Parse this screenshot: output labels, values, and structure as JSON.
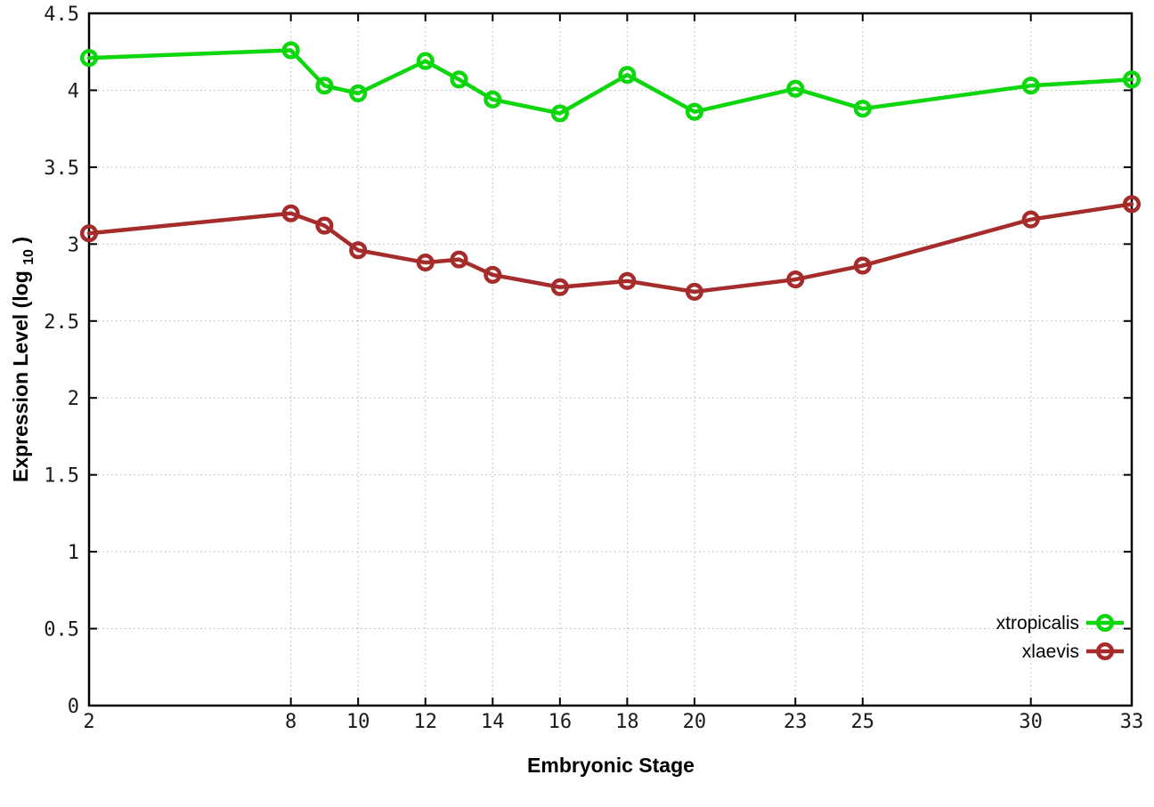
{
  "figure": {
    "xlabel": "Embryonic Stage",
    "ylabel_main": "Expression Level (log",
    "ylabel_sub": "10",
    "ylabel_end": ")"
  },
  "chart_data": {
    "type": "line",
    "title": "",
    "xlabel": "Embryonic Stage",
    "ylabel": "Expression Level (log10)",
    "xlim": [
      2,
      33
    ],
    "ylim": [
      0,
      4.5
    ],
    "xticks": [
      2,
      8,
      10,
      12,
      14,
      16,
      18,
      20,
      23,
      25,
      30,
      33
    ],
    "yticks": [
      0,
      0.5,
      1,
      1.5,
      2,
      2.5,
      3,
      3.5,
      4,
      4.5
    ],
    "grid": true,
    "grid_style": "dotted",
    "legend_position": "inside-bottom-right",
    "marker": "open-circle",
    "x": [
      2,
      8,
      9,
      10,
      12,
      13,
      14,
      16,
      18,
      20,
      23,
      25,
      30,
      33
    ],
    "series": [
      {
        "name": "xtropicalis",
        "color": "#0cd60c",
        "values": [
          4.21,
          4.26,
          4.03,
          3.98,
          4.19,
          4.07,
          3.94,
          3.85,
          4.1,
          3.86,
          4.01,
          3.88,
          4.03,
          4.07
        ]
      },
      {
        "name": "xlaevis",
        "color": "#a62c2c",
        "values": [
          3.07,
          3.2,
          3.12,
          2.96,
          2.88,
          2.9,
          2.8,
          2.72,
          2.76,
          2.69,
          2.77,
          2.86,
          3.16,
          3.26
        ]
      }
    ],
    "axis_color": "#000000",
    "grid_color": "#b5b5b5",
    "text_color": "#1a1a1a"
  }
}
